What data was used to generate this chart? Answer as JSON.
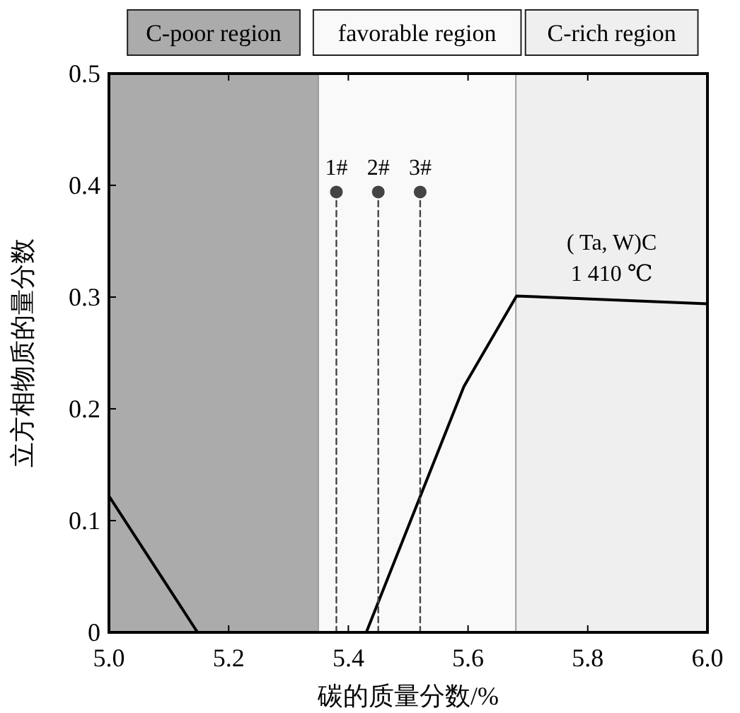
{
  "chart_data": {
    "type": "line",
    "xlabel": "碳的质量分数/%",
    "ylabel": "立方相物质的量分数",
    "xlim": [
      5,
      6
    ],
    "ylim": [
      0,
      0.5
    ],
    "xticks": [
      {
        "value": 5,
        "label": "5.0"
      },
      5.2,
      5.4,
      5.6,
      5.8,
      {
        "value": 6,
        "label": "6.0"
      }
    ],
    "yticks": [
      0,
      0.1,
      0.2,
      0.3,
      0.4,
      0.5
    ],
    "grid": false,
    "bands": [
      {
        "axis": "x",
        "from": 5,
        "to": 5.35,
        "label": "C-poor region",
        "color": "#ababab"
      },
      {
        "axis": "x",
        "from": 5.35,
        "to": 5.68,
        "label": "favorable region",
        "color": "#f9f9f9"
      },
      {
        "axis": "x",
        "from": 5.68,
        "to": 6,
        "label": "C-rich region",
        "color": "#efefef"
      }
    ],
    "series": [
      {
        "color": "#000000",
        "x": [
          5,
          5.148
        ],
        "values": [
          0.122,
          0
        ],
        "line_style": "solid",
        "marker": "none"
      },
      {
        "color": "#000000",
        "x": [
          5.43,
          5.593,
          5.681,
          6
        ],
        "values": [
          0,
          0.22,
          0.301,
          0.294
        ],
        "line_style": "solid",
        "marker": "none"
      },
      {
        "name": "1#",
        "color": "#444444",
        "x": [
          5.38,
          5.38
        ],
        "values": [
          0,
          0.394
        ],
        "line_style": "dashed",
        "marker": "circle"
      },
      {
        "name": "2#",
        "color": "#444444",
        "x": [
          5.45,
          5.45
        ],
        "values": [
          0,
          0.394
        ],
        "line_style": "dashed",
        "marker": "circle"
      },
      {
        "name": "3#",
        "color": "#444444",
        "x": [
          5.52,
          5.52
        ],
        "values": [
          0,
          0.394
        ],
        "line_style": "dashed",
        "marker": "circle"
      }
    ],
    "annotations": [
      {
        "text": "( Ta, W)C\n1 410 ℃",
        "x": 5.84,
        "y": 0.297
      }
    ]
  }
}
